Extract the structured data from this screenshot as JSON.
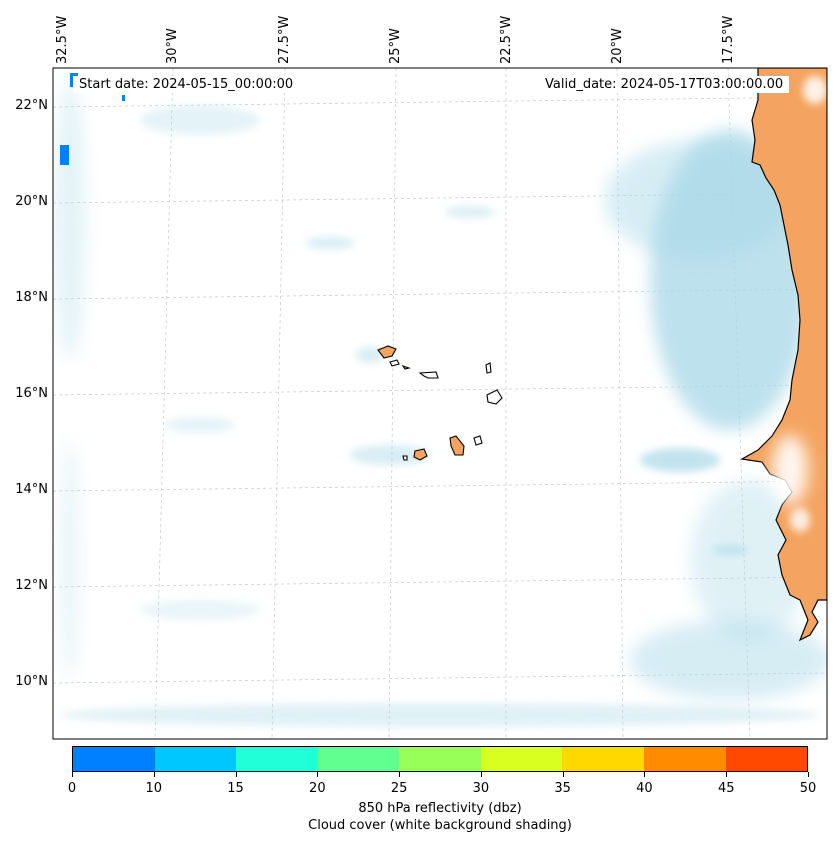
{
  "map": {
    "start_date": "Start date: 2024-05-15_00:00:00",
    "valid_date": "Valid_date: 2024-05-17T03:00:00.00",
    "lon_labels": [
      "32.5°W",
      "30°W",
      "27.5°W",
      "25°W",
      "22.5°W",
      "20°W",
      "17.5°W"
    ],
    "lat_labels": [
      "22°N",
      "20°N",
      "18°N",
      "16°N",
      "14°N",
      "12°N",
      "10°N"
    ],
    "land_color": "#f4a460",
    "cloud_color": "#a8d8e8",
    "coastline_color": "#000000",
    "gridlines": "dashed"
  },
  "colorbar": {
    "ticks": [
      "0",
      "10",
      "15",
      "20",
      "25",
      "30",
      "35",
      "40",
      "45",
      "50"
    ],
    "colors": [
      "#0080ff",
      "#00c8ff",
      "#20ffd8",
      "#60ff90",
      "#98ff58",
      "#d8ff20",
      "#ffd800",
      "#ff8c00",
      "#ff4800"
    ],
    "label_line1": "850 hPa reflectivity (dbz)",
    "label_line2": "Cloud cover (white background shading)"
  }
}
